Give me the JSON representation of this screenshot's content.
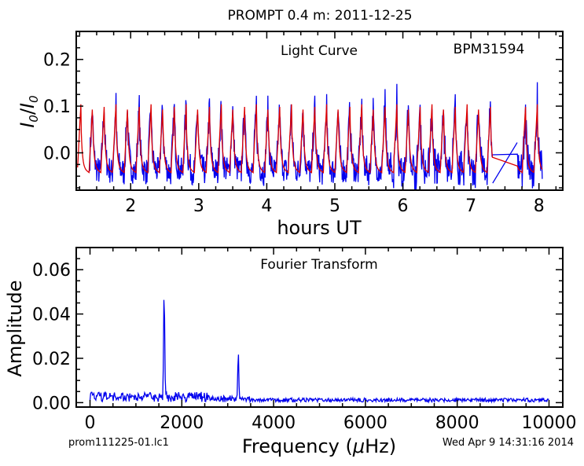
{
  "title": "PROMPT 0.4 m:  2011-12-25",
  "footer_left": "prom111225-01.lc1",
  "footer_right": "Wed Apr  9 14:31:16 2014",
  "colors": {
    "data": "#0000ee",
    "model": "#dd0000",
    "axis": "#000000"
  },
  "chart_data": [
    {
      "type": "line",
      "inner_label": "Light Curve",
      "object_label": "BPM31594",
      "xlabel": "hours UT",
      "ylabel_sym": "I",
      "ylabel_sub": "0",
      "xlim": [
        1.2,
        8.35
      ],
      "ylim": [
        -0.08,
        0.26
      ],
      "xticks": [
        2,
        3,
        4,
        5,
        6,
        7,
        8
      ],
      "yticks": [
        0.0,
        0.1,
        0.2
      ],
      "ytick_labels": [
        "0.0",
        "0.1",
        "0.2"
      ],
      "series": [
        {
          "role": "data",
          "x_range": [
            1.22,
            8.05
          ],
          "mean": 0.0,
          "amplitude": 0.055,
          "period_hours": 0.172,
          "noise": 0.03
        },
        {
          "role": "model",
          "x_range": [
            1.22,
            8.05
          ],
          "mean": 0.0,
          "amplitude": 0.055,
          "period_hours": 0.172
        }
      ],
      "gap": {
        "x": [
          7.32,
          7.68
        ],
        "y": [
          -0.065,
          0.022
        ]
      }
    },
    {
      "type": "line",
      "inner_label": "Fourier Transform",
      "xlabel": "Frequency (",
      "xlabel_mu": "μ",
      "xlabel_unit": "Hz)",
      "ylabel": "Amplitude",
      "xlim": [
        -300,
        10300
      ],
      "ylim": [
        -0.002,
        0.07
      ],
      "xticks": [
        0,
        2000,
        4000,
        6000,
        8000,
        10000
      ],
      "yticks": [
        0.0,
        0.02,
        0.04,
        0.06
      ],
      "ytick_labels": [
        "0.00",
        "0.02",
        "0.04",
        "0.06"
      ],
      "series": [
        {
          "role": "data",
          "x_range": [
            0,
            10000
          ]
        }
      ],
      "peaks": [
        {
          "x": 1615,
          "y": 0.048
        },
        {
          "x": 3230,
          "y": 0.022
        }
      ]
    }
  ]
}
